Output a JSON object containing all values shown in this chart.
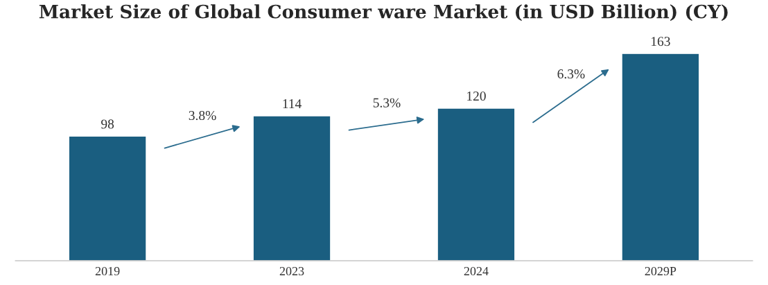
{
  "chart_data": {
    "type": "bar",
    "title": "Market Size of Global Consumer ware Market (in USD Billion) (CY)",
    "categories": [
      "2019",
      "2023",
      "2024",
      "2029P"
    ],
    "values": [
      98,
      114,
      120,
      163
    ],
    "color": "#1a5e80",
    "data_labels": true,
    "annotations": [
      "3.8%",
      "5.3%",
      "6.3%"
    ]
  }
}
